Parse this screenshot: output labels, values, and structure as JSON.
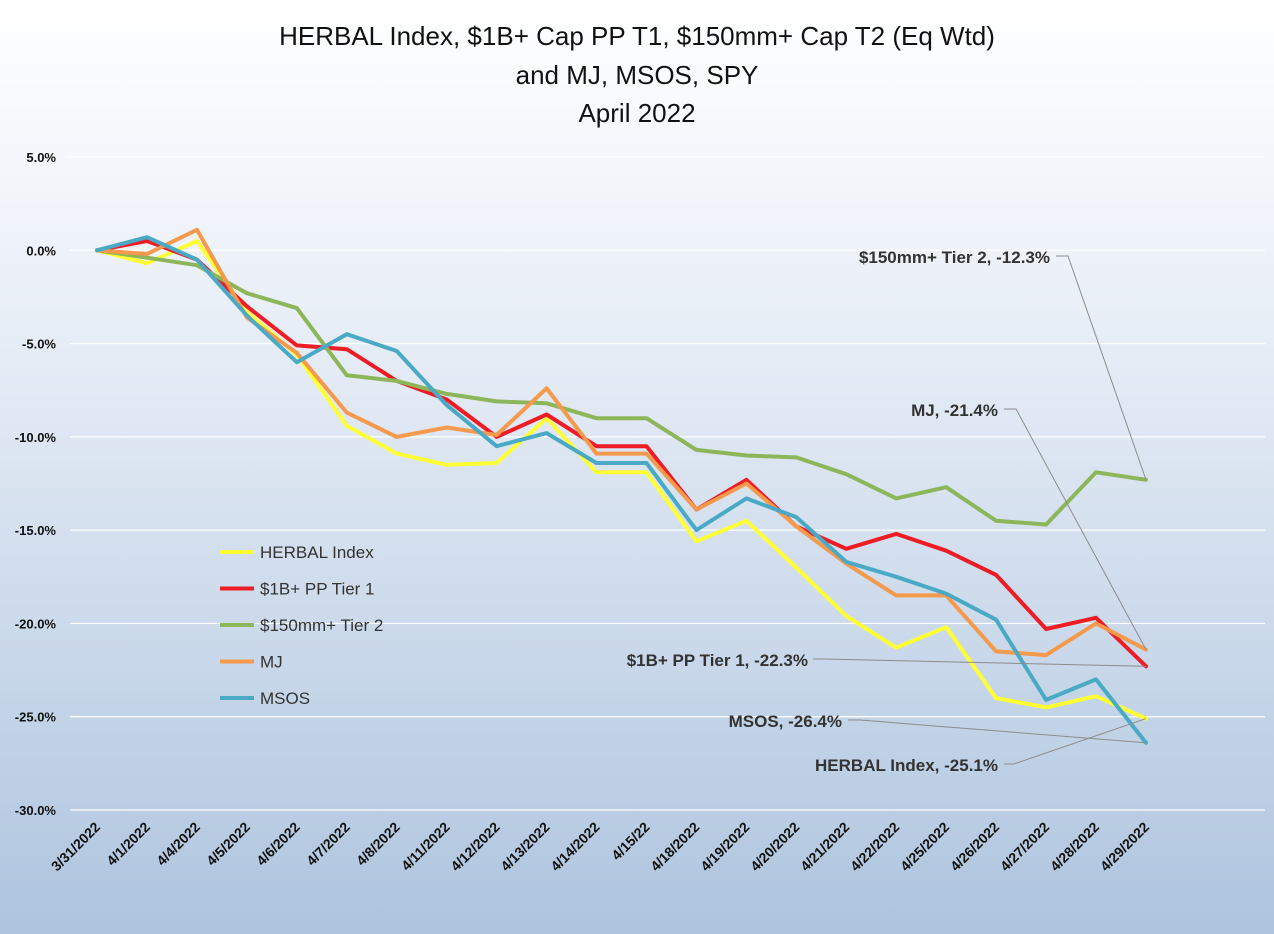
{
  "chart_data": {
    "type": "line",
    "title": [
      "HERBAL Index, $1B+ Cap PP T1, $150mm+ Cap T2  (Eq Wtd)",
      "and MJ, MSOS, SPY",
      "April 2022"
    ],
    "xlabel": "",
    "ylabel": "",
    "ylim": [
      -30,
      5
    ],
    "yticks": [
      5,
      0,
      -5,
      -10,
      -15,
      -20,
      -25,
      -30
    ],
    "ytick_labels": [
      "5.0%",
      "0.0%",
      "-5.0%",
      "-10.0%",
      "-15.0%",
      "-20.0%",
      "-25.0%",
      "-30.0%"
    ],
    "grid": true,
    "legend_position": "left-middle",
    "x": [
      "3/31/2022",
      "4/1/2022",
      "4/4/2022",
      "4/5/2022",
      "4/6/2022",
      "4/7/2022",
      "4/8/2022",
      "4/11/2022",
      "4/12/2022",
      "4/13/2022",
      "4/14/2022",
      "4/15/22",
      "4/18/2022",
      "4/19/2022",
      "4/20/2022",
      "4/21/2022",
      "4/22/2022",
      "4/25/2022",
      "4/26/2022",
      "4/27/2022",
      "4/28/2022",
      "4/29/2022"
    ],
    "series": [
      {
        "name": "HERBAL Index",
        "color": "#ffff33",
        "values": [
          0.0,
          -0.7,
          0.5,
          -3.3,
          -5.6,
          -9.4,
          -10.9,
          -11.5,
          -11.4,
          -9.0,
          -11.9,
          -11.9,
          -15.6,
          -14.5,
          -17.0,
          -19.6,
          -21.3,
          -20.2,
          -24.0,
          -24.5,
          -23.9,
          -25.1
        ]
      },
      {
        "name": "$1B+ PP Tier 1",
        "color": "#ee1c25",
        "values": [
          0.0,
          0.5,
          -0.5,
          -3.0,
          -5.1,
          -5.3,
          -7.0,
          -8.0,
          -10.0,
          -8.8,
          -10.5,
          -10.5,
          -13.9,
          -12.3,
          -14.8,
          -16.0,
          -15.2,
          -16.1,
          -17.4,
          -20.3,
          -19.7,
          -22.3
        ]
      },
      {
        "name": "$150mm+ Tier 2",
        "color": "#8db55a",
        "values": [
          0.0,
          -0.4,
          -0.8,
          -2.3,
          -3.1,
          -6.7,
          -7.0,
          -7.7,
          -8.1,
          -8.2,
          -9.0,
          -9.0,
          -10.7,
          -11.0,
          -11.1,
          -12.0,
          -13.3,
          -12.7,
          -14.5,
          -14.7,
          -11.9,
          -12.3
        ]
      },
      {
        "name": "MJ",
        "color": "#f59a4d",
        "values": [
          0.0,
          -0.2,
          1.1,
          -3.6,
          -5.5,
          -8.7,
          -10.0,
          -9.5,
          -9.9,
          -7.4,
          -10.9,
          -10.9,
          -13.9,
          -12.5,
          -14.8,
          -16.8,
          -18.5,
          -18.5,
          -21.5,
          -21.7,
          -20.0,
          -21.4
        ]
      },
      {
        "name": "MSOS",
        "color": "#4aaac6",
        "values": [
          0.0,
          0.7,
          -0.5,
          -3.5,
          -6.0,
          -4.5,
          -5.4,
          -8.3,
          -10.5,
          -9.8,
          -11.4,
          -11.4,
          -15.0,
          -13.3,
          -14.3,
          -16.7,
          -17.5,
          -18.4,
          -19.8,
          -24.1,
          -23.0,
          -26.4
        ]
      }
    ],
    "annotations": [
      {
        "text": "$150mm+ Tier 2, -12.3%",
        "series": "$150mm+ Tier 2"
      },
      {
        "text": "MJ, -21.4%",
        "series": "MJ"
      },
      {
        "text": "$1B+ PP Tier 1, -22.3%",
        "series": "$1B+ PP Tier 1"
      },
      {
        "text": "MSOS, -26.4%",
        "series": "MSOS"
      },
      {
        "text": "HERBAL Index, -25.1%",
        "series": "HERBAL Index"
      }
    ]
  }
}
